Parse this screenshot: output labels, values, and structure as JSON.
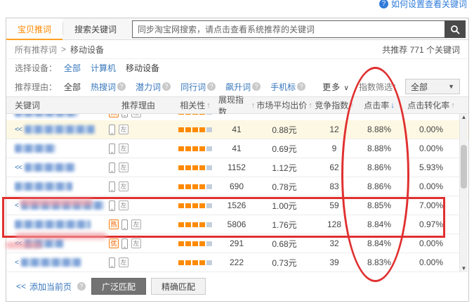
{
  "help_link": {
    "label": "如何设置查看关键词"
  },
  "tabs": {
    "active": "宝贝推词",
    "inactive": "搜索关键词"
  },
  "search": {
    "placeholder": "同步淘宝网搜索，请点击查看系统推荐的关键词"
  },
  "breadcrumb": {
    "path": "所有推荐词",
    "sep": ">",
    "current": "移动设备",
    "total": "共推荐 771 个关键词"
  },
  "device_filter": {
    "label": "选择设备：",
    "options": [
      {
        "label": "全部",
        "state": "link",
        "help": false
      },
      {
        "label": "计算机",
        "state": "link",
        "help": false
      },
      {
        "label": "移动设备",
        "state": "selected",
        "help": false
      }
    ]
  },
  "reason_filter": {
    "label": "推荐理由：",
    "options": [
      {
        "label": "全部",
        "state": "selected",
        "help": false
      },
      {
        "label": "热搜词",
        "state": "link",
        "help": true
      },
      {
        "label": "潜力词",
        "state": "link",
        "help": true
      },
      {
        "label": "同行词",
        "state": "link",
        "help": true
      },
      {
        "label": "飙升词",
        "state": "link",
        "help": true
      },
      {
        "label": "手机标",
        "state": "link",
        "help": true
      }
    ],
    "more": "更多",
    "more_caret": "∨",
    "index_filter_label": "指数筛选：",
    "index_filter_value": "全部"
  },
  "table": {
    "columns": [
      {
        "label": "关键词",
        "sort": ""
      },
      {
        "label": "推荐理由",
        "sort": ""
      },
      {
        "label": "相关性",
        "sort": "up"
      },
      {
        "label": "展现指数",
        "sort": "up"
      },
      {
        "label": "市场平均出价",
        "sort": "up"
      },
      {
        "label": "竞争指数",
        "sort": "up"
      },
      {
        "label": "点击率",
        "sort": "down-active"
      },
      {
        "label": "点击转化率",
        "sort": "up"
      }
    ],
    "badge_labels": {
      "hot": "热",
      "best": "优",
      "left": "左"
    },
    "rows": [
      {
        "prefix": "<<",
        "kw_w": 100,
        "badges": [
          "phone",
          "left"
        ],
        "bars_on": 4,
        "impressions": "41",
        "price": "0.88元",
        "competition": "12",
        "ctr": "8.88%",
        "cvr": "0.00%",
        "highlight": true
      },
      {
        "prefix": "",
        "kw_w": 58,
        "badges": [
          "phone",
          "left"
        ],
        "bars_on": 4,
        "impressions": "41",
        "price": "0.69元",
        "competition": "9",
        "ctr": "8.88%",
        "cvr": "0.00%",
        "highlight": false
      },
      {
        "prefix": "<<",
        "kw_w": 72,
        "badges": [
          "phone",
          "left"
        ],
        "bars_on": 4,
        "impressions": "1152",
        "price": "1.12元",
        "competition": "62",
        "ctr": "8.86%",
        "cvr": "5.93%",
        "highlight": false
      },
      {
        "prefix": "",
        "kw_w": 82,
        "badges": [
          "phone",
          "left"
        ],
        "bars_on": 4,
        "impressions": "690",
        "price": "0.78元",
        "competition": "83",
        "ctr": "8.86%",
        "cvr": "0.00%",
        "highlight": false
      },
      {
        "prefix": "<",
        "kw_w": 118,
        "badges": [
          "phone",
          "left"
        ],
        "bars_on": 4,
        "impressions": "1526",
        "price": "1.00元",
        "competition": "59",
        "ctr": "8.85%",
        "cvr": "7.00%",
        "highlight": false
      },
      {
        "prefix": "",
        "kw_w": 108,
        "badges": [
          "hot",
          "phone",
          "left"
        ],
        "bars_on": 4,
        "impressions": "5806",
        "price": "1.76元",
        "competition": "128",
        "ctr": "8.84%",
        "cvr": "0.97%",
        "highlight": false
      },
      {
        "prefix": "<<",
        "kw_w": 56,
        "badges": [
          "best",
          "phone",
          "left"
        ],
        "bars_on": 4,
        "impressions": "291",
        "price": "0.68元",
        "competition": "32",
        "ctr": "8.84%",
        "cvr": "0.00%",
        "highlight": false
      },
      {
        "prefix": "<",
        "kw_w": 86,
        "badges": [
          "phone",
          "left"
        ],
        "bars_on": 4,
        "impressions": "222",
        "price": "0.73元",
        "competition": "39",
        "ctr": "8.83%",
        "cvr": "0.00%",
        "highlight": false
      }
    ],
    "partial_row": {
      "kw_w": 90,
      "badges": [
        "hot",
        "phone",
        "left"
      ],
      "bars_on": 4
    }
  },
  "footer": {
    "add_prefix": "<<",
    "add_label": "添加当前页",
    "broad_label": "广泛匹配",
    "exact_label": "精确匹配"
  },
  "scrollbar": {
    "up_glyph": "▲",
    "down_glyph": "▼"
  },
  "colors": {
    "accent_orange": "#ff8a00",
    "link_blue": "#3777bc",
    "annotation_red": "#e03030",
    "sort_active_blue": "#2f7bd9",
    "highlight_row": "#fdf8e3"
  }
}
